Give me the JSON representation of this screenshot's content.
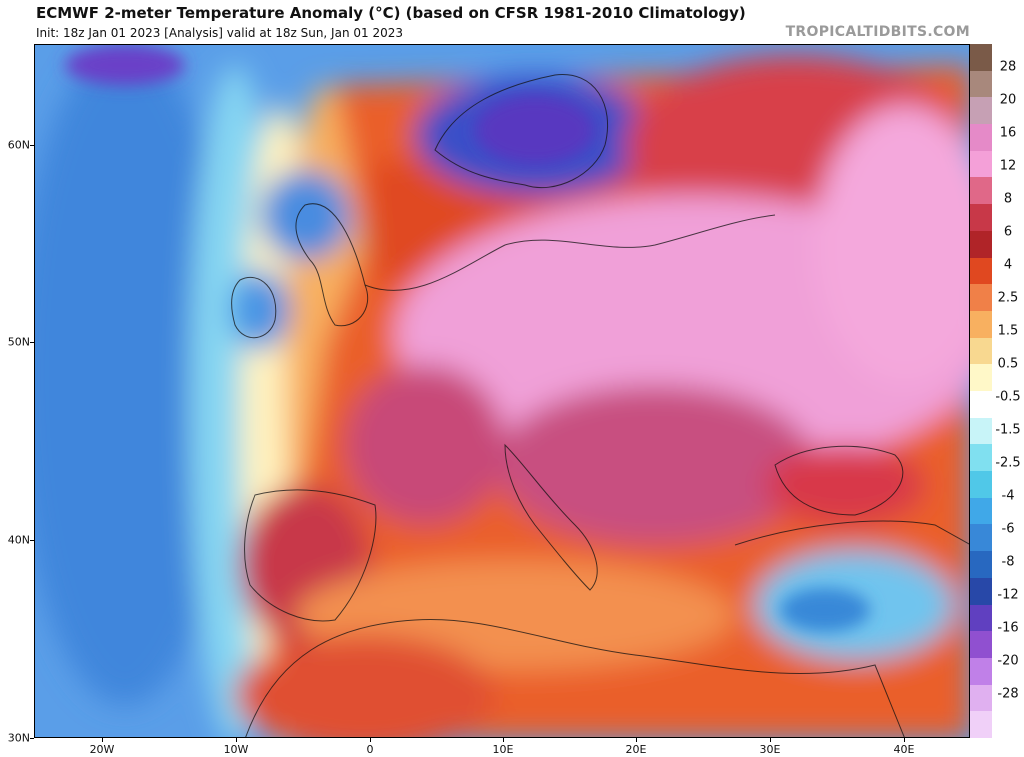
{
  "header": {
    "title": "ECMWF 2-meter Temperature Anomaly (°C) (based on CFSR 1981-2010 Climatology)",
    "subtitle": "Init: 18z Jan 01 2023  [Analysis]   valid at 18z Sun, Jan 01 2023",
    "brand": "TROPICALTIDBITS.COM"
  },
  "map": {
    "region": "Europe",
    "lat_labels": [
      "60N",
      "50N",
      "40N",
      "30N"
    ],
    "lon_labels": [
      "20W",
      "10W",
      "0",
      "10E",
      "20E",
      "30E",
      "40E"
    ],
    "colorbar": {
      "labels": [
        "28",
        "20",
        "16",
        "12",
        "8",
        "6",
        "4",
        "2.5",
        "1.5",
        "0.5",
        "-0.5",
        "-1.5",
        "-2.5",
        "-4",
        "-6",
        "-8",
        "-12",
        "-16",
        "-20",
        "-28"
      ],
      "colors": [
        "#7a5a48",
        "#a8887c",
        "#c6a0b4",
        "#e58ac8",
        "#f4a0d8",
        "#e06888",
        "#c83848",
        "#b02428",
        "#e04820",
        "#f08048",
        "#f8b060",
        "#f8d890",
        "#fff8c8",
        "#ffffff",
        "#c8f4f8",
        "#80e0f0",
        "#50c8e8",
        "#40a8e8",
        "#3888d8",
        "#2868c0",
        "#2848a8",
        "#6040c0",
        "#9050d0",
        "#c080e8",
        "#e0b0f0",
        "#f0d0f8"
      ]
    }
  }
}
